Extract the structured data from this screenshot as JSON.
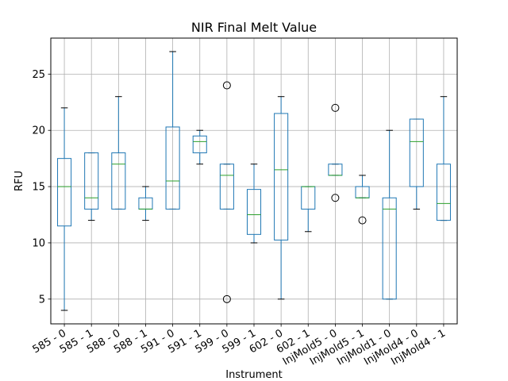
{
  "chart_data": {
    "type": "box",
    "title": "NIR Final Melt Value",
    "xlabel": "Instrument",
    "ylabel": "RFU",
    "ylim": [
      2.8,
      28.2
    ],
    "yticks": [
      5,
      10,
      15,
      20,
      25
    ],
    "grid": true,
    "colors": {
      "box": "#1f77b4",
      "median": "#2ca02c",
      "whisker": "#1f77b4",
      "cap": "#000000",
      "grid": "#b0b0b0"
    },
    "categories": [
      "585 - 0",
      "585 - 1",
      "588 - 0",
      "588 - 1",
      "591 - 0",
      "591 - 1",
      "599 - 0",
      "599 - 1",
      "602 - 0",
      "602 - 1",
      "InjMold5 - 0",
      "InjMold5 - 1",
      "InjMold1 - 0",
      "InjMold4 - 0",
      "InjMold4 - 1"
    ],
    "boxes": [
      {
        "whislo": 4,
        "q1": 11.5,
        "med": 15,
        "q3": 17.5,
        "whishi": 22,
        "fliers": []
      },
      {
        "whislo": 12,
        "q1": 13,
        "med": 14,
        "q3": 18,
        "whishi": 18,
        "fliers": []
      },
      {
        "whislo": 13,
        "q1": 13,
        "med": 17,
        "q3": 18,
        "whishi": 23,
        "fliers": []
      },
      {
        "whislo": 12,
        "q1": 13,
        "med": 13,
        "q3": 14,
        "whishi": 15,
        "fliers": []
      },
      {
        "whislo": 13,
        "q1": 13,
        "med": 15.5,
        "q3": 20.3,
        "whishi": 27,
        "fliers": []
      },
      {
        "whislo": 17,
        "q1": 18,
        "med": 19,
        "q3": 19.5,
        "whishi": 20,
        "fliers": []
      },
      {
        "whislo": 13,
        "q1": 13,
        "med": 16,
        "q3": 17,
        "whishi": 17,
        "fliers": [
          24,
          5
        ]
      },
      {
        "whislo": 10,
        "q1": 10.75,
        "med": 12.5,
        "q3": 14.75,
        "whishi": 17,
        "fliers": []
      },
      {
        "whislo": 5,
        "q1": 10.25,
        "med": 16.5,
        "q3": 21.5,
        "whishi": 23,
        "fliers": []
      },
      {
        "whislo": 11,
        "q1": 13,
        "med": 15,
        "q3": 15,
        "whishi": 15,
        "fliers": []
      },
      {
        "whislo": 16,
        "q1": 16,
        "med": 16,
        "q3": 17,
        "whishi": 17,
        "fliers": [
          22,
          14
        ]
      },
      {
        "whislo": 14,
        "q1": 14,
        "med": 14,
        "q3": 15,
        "whishi": 16,
        "fliers": [
          12
        ]
      },
      {
        "whislo": 5,
        "q1": 5,
        "med": 13,
        "q3": 14,
        "whishi": 20,
        "fliers": []
      },
      {
        "whislo": 13,
        "q1": 15,
        "med": 19,
        "q3": 21,
        "whishi": 21,
        "fliers": []
      },
      {
        "whislo": 12,
        "q1": 12,
        "med": 13.5,
        "q3": 17,
        "whishi": 23,
        "fliers": []
      }
    ]
  }
}
